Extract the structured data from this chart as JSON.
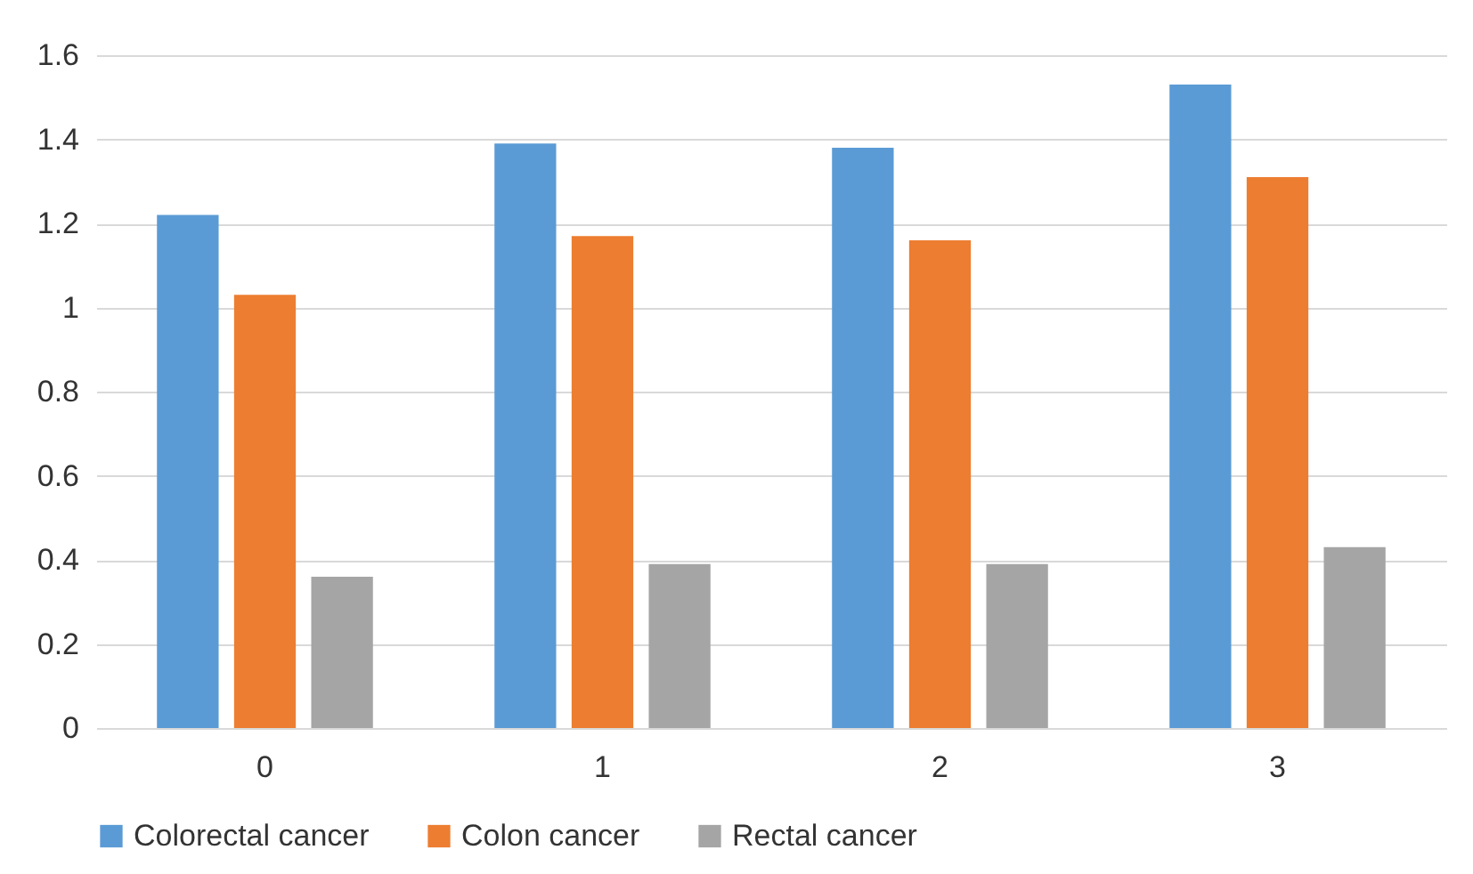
{
  "chart_data": {
    "type": "bar",
    "categories": [
      "0",
      "1",
      "2",
      "3"
    ],
    "series": [
      {
        "name": "Colorectal cancer",
        "color": "#5b9bd5",
        "values": [
          1.22,
          1.39,
          1.38,
          1.53
        ]
      },
      {
        "name": "Colon cancer",
        "color": "#ed7d31",
        "values": [
          1.03,
          1.17,
          1.16,
          1.31
        ]
      },
      {
        "name": "Rectal cancer",
        "color": "#a5a5a5",
        "values": [
          0.36,
          0.39,
          0.39,
          0.43
        ]
      }
    ],
    "ylim": [
      0,
      1.6
    ],
    "yticks": [
      0,
      {
        "value": 0.2,
        "label": "0.2"
      },
      {
        "value": 0.4,
        "label": "0.4"
      },
      {
        "value": 0.6,
        "label": "0.6"
      },
      {
        "value": 0.8,
        "label": "0.8"
      },
      1,
      {
        "value": 1.2,
        "label": "1.2"
      },
      {
        "value": 1.4,
        "label": "1.4"
      },
      {
        "value": 1.6,
        "label": "1.6"
      }
    ],
    "grid": "y",
    "legend": "bottom"
  }
}
